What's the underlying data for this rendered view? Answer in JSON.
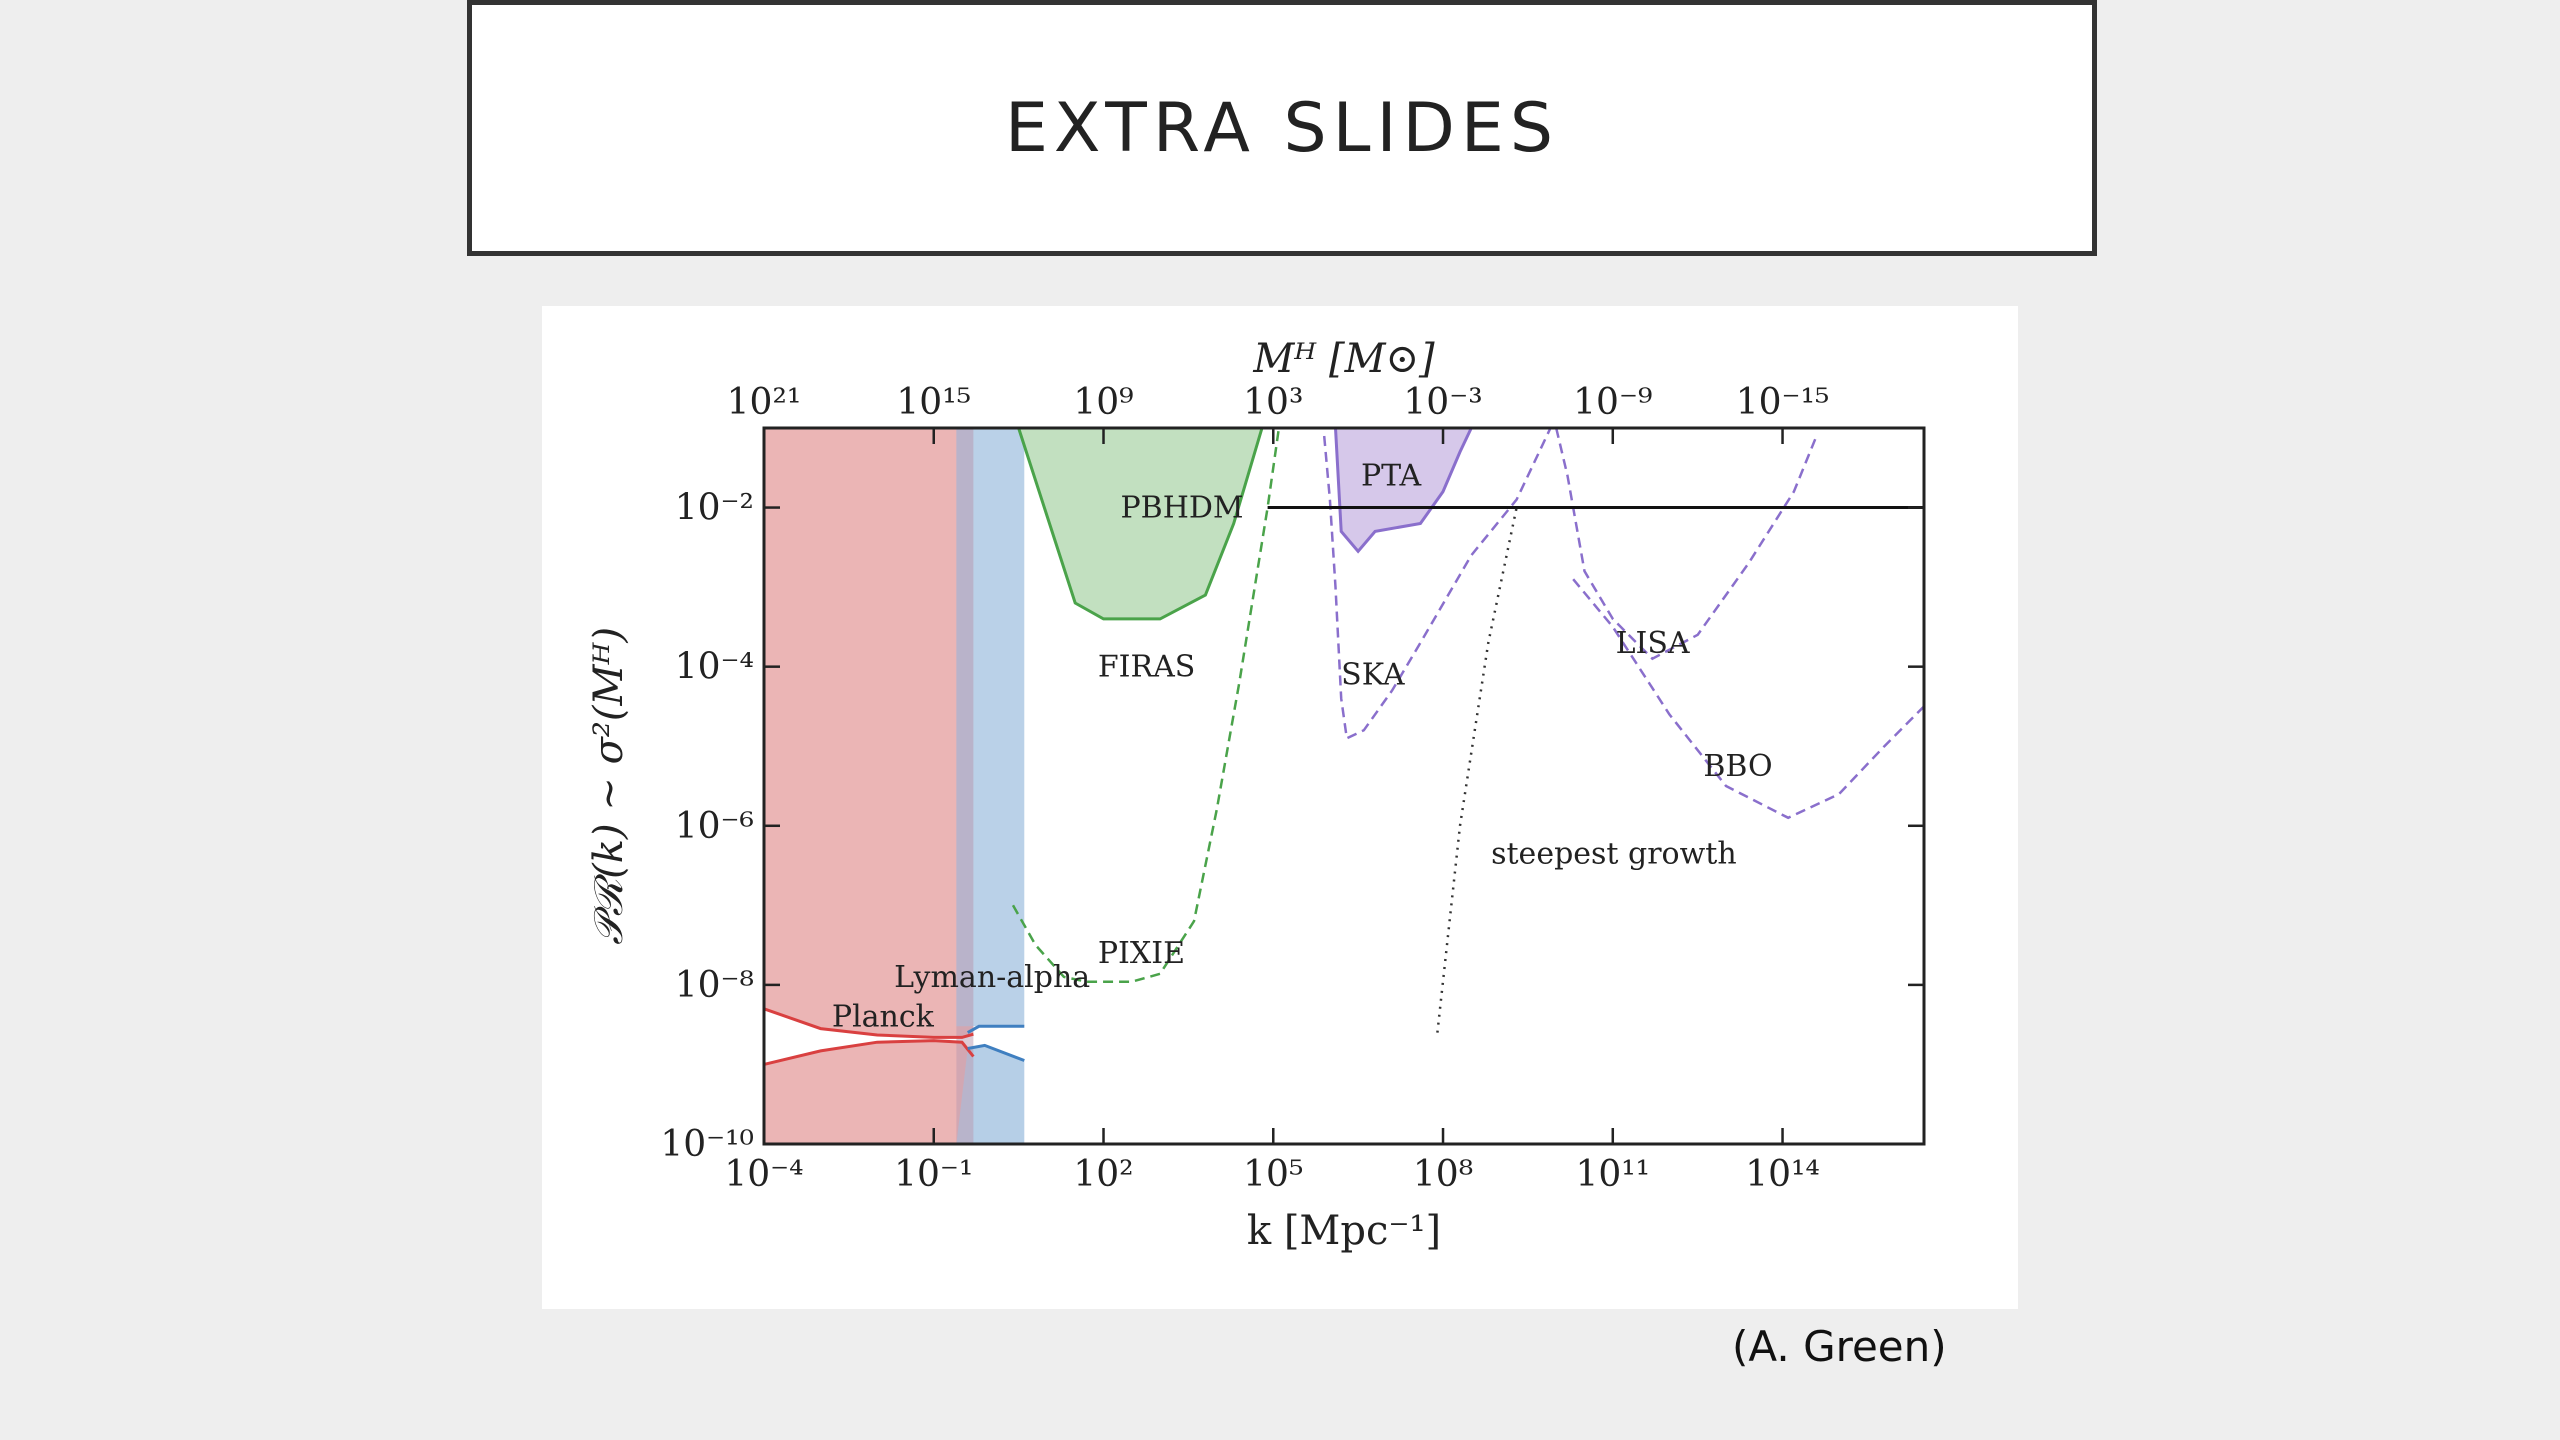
{
  "slide": {
    "title": "EXTRA SLIDES",
    "credit": "(A. Green)"
  },
  "chart_data": {
    "type": "area",
    "title": "",
    "xlabel": "k [Mpc⁻¹]",
    "ylabel": "𝒫ℛ(k) ~ σ²(Mᴴ)",
    "top_xlabel": "Mᴴ [M⊙]",
    "x_scale": "log10",
    "y_scale": "log10",
    "xlim_log10": [
      -4,
      16.5
    ],
    "ylim_log10": [
      -10,
      -1
    ],
    "x_ticks": [
      {
        "log10": -4,
        "label": "10⁻⁴"
      },
      {
        "log10": -1,
        "label": "10⁻¹"
      },
      {
        "log10": 2,
        "label": "10²"
      },
      {
        "log10": 5,
        "label": "10⁵"
      },
      {
        "log10": 8,
        "label": "10⁸"
      },
      {
        "log10": 11,
        "label": "10¹¹"
      },
      {
        "log10": 14,
        "label": "10¹⁴"
      }
    ],
    "y_ticks": [
      {
        "log10": -2,
        "label": "10⁻²"
      },
      {
        "log10": -4,
        "label": "10⁻⁴"
      },
      {
        "log10": -6,
        "label": "10⁻⁶"
      },
      {
        "log10": -8,
        "label": "10⁻⁸"
      },
      {
        "log10": -10,
        "label": "10⁻¹⁰"
      }
    ],
    "top_ticks": [
      {
        "k_log10": -4,
        "label": "10²¹"
      },
      {
        "k_log10": -1,
        "label": "10¹⁵"
      },
      {
        "k_log10": 2,
        "label": "10⁹"
      },
      {
        "k_log10": 5,
        "label": "10³"
      },
      {
        "k_log10": 8,
        "label": "10⁻³"
      },
      {
        "k_log10": 11,
        "label": "10⁻⁹"
      },
      {
        "k_log10": 14,
        "label": "10⁻¹⁵"
      }
    ],
    "colors": {
      "planck": "#d94040",
      "planck_fill": "#ebb5b5",
      "lyman": "#3f7fc0",
      "lyman_fill": "#b6cfe7",
      "firas": "#4aa34a",
      "firas_fill": "#c2e0c0",
      "pta": "#8a6fcc",
      "pta_fill": "#d6c8ea",
      "dashed_purple": "#8a6fcc",
      "pbhdm": "#111111",
      "steepest": "#333333"
    },
    "series": [
      {
        "name": "Planck",
        "kind": "excluded_region",
        "x_log10_range": [
          -4,
          -0.3
        ],
        "upper_curve": [
          [
            -4,
            -8.3
          ],
          [
            -3,
            -8.55
          ],
          [
            -2,
            -8.63
          ],
          [
            -1,
            -8.66
          ],
          [
            -0.5,
            -8.66
          ],
          [
            -0.3,
            -8.62
          ]
        ],
        "lower_curve": [
          [
            -4,
            -9.0
          ],
          [
            -3,
            -8.83
          ],
          [
            -2,
            -8.72
          ],
          [
            -1,
            -8.7
          ],
          [
            -0.5,
            -8.72
          ],
          [
            -0.3,
            -8.9
          ]
        ]
      },
      {
        "name": "Lyman-alpha",
        "kind": "excluded_region",
        "x_log10_range": [
          -0.6,
          0.6
        ],
        "upper_curve": [
          [
            -0.4,
            -8.6
          ],
          [
            -0.2,
            -8.52
          ],
          [
            0.6,
            -8.52
          ]
        ],
        "lower_curve": [
          [
            -0.4,
            -8.8
          ],
          [
            -0.1,
            -8.76
          ],
          [
            0.6,
            -8.95
          ]
        ]
      },
      {
        "name": "FIRAS",
        "kind": "excluded_region",
        "boundary": [
          [
            0.5,
            -1
          ],
          [
            1.0,
            -2.1
          ],
          [
            1.5,
            -3.2
          ],
          [
            2.0,
            -3.4
          ],
          [
            3.0,
            -3.4
          ],
          [
            3.8,
            -3.1
          ],
          [
            4.3,
            -2.2
          ],
          [
            4.8,
            -1
          ]
        ]
      },
      {
        "name": "PIXIE",
        "kind": "projected",
        "curve": [
          [
            0.4,
            -7.0
          ],
          [
            0.8,
            -7.5
          ],
          [
            1.3,
            -7.9
          ],
          [
            1.7,
            -7.96
          ],
          [
            2.5,
            -7.96
          ],
          [
            3.0,
            -7.86
          ],
          [
            3.6,
            -7.2
          ],
          [
            4.0,
            -5.8
          ],
          [
            4.4,
            -4.2
          ],
          [
            4.9,
            -2.0
          ],
          [
            5.1,
            -1.0
          ]
        ]
      },
      {
        "name": "PTA",
        "kind": "excluded_region",
        "boundary": [
          [
            6.1,
            -1
          ],
          [
            6.2,
            -2.3
          ],
          [
            6.5,
            -2.55
          ],
          [
            6.8,
            -2.3
          ],
          [
            7.6,
            -2.2
          ],
          [
            8.0,
            -1.8
          ],
          [
            8.3,
            -1.3
          ],
          [
            8.5,
            -1
          ]
        ]
      },
      {
        "name": "SKA",
        "kind": "projected",
        "curve": [
          [
            5.9,
            -1.1
          ],
          [
            6.0,
            -1.9
          ],
          [
            6.1,
            -3.0
          ],
          [
            6.2,
            -4.4
          ],
          [
            6.3,
            -4.9
          ],
          [
            6.6,
            -4.8
          ],
          [
            7.1,
            -4.3
          ],
          [
            7.6,
            -3.7
          ],
          [
            8.5,
            -2.6
          ],
          [
            9.3,
            -1.9
          ],
          [
            9.7,
            -1.3
          ],
          [
            9.9,
            -1.0
          ]
        ]
      },
      {
        "name": "LISA",
        "kind": "projected",
        "curve": [
          [
            10.0,
            -1.0
          ],
          [
            10.2,
            -1.6
          ],
          [
            10.5,
            -2.8
          ],
          [
            11.0,
            -3.4
          ],
          [
            11.7,
            -3.9
          ],
          [
            12.5,
            -3.6
          ],
          [
            13.4,
            -2.7
          ],
          [
            14.2,
            -1.8
          ],
          [
            14.6,
            -1.1
          ]
        ]
      },
      {
        "name": "BBO",
        "kind": "projected",
        "curve": [
          [
            10.3,
            -2.9
          ],
          [
            11.0,
            -3.5
          ],
          [
            12.0,
            -4.6
          ],
          [
            13.0,
            -5.5
          ],
          [
            14.1,
            -5.9
          ],
          [
            15.0,
            -5.6
          ],
          [
            15.8,
            -5.0
          ],
          [
            16.5,
            -4.5
          ]
        ]
      },
      {
        "name": "PBHDM",
        "kind": "line",
        "y_log10": -2,
        "x_log10_range": [
          4.9,
          16.5
        ]
      },
      {
        "name": "steepest growth",
        "kind": "line",
        "curve": [
          [
            7.9,
            -8.6
          ],
          [
            8.3,
            -6.0
          ],
          [
            8.8,
            -3.7
          ],
          [
            9.3,
            -2.0
          ]
        ]
      }
    ],
    "annotations": [
      {
        "text": "PBHDM",
        "x_log10": 2.3,
        "y_log10": -2
      },
      {
        "text": "PTA",
        "x_log10": 6.55,
        "y_log10": -1.6
      },
      {
        "text": "FIRAS",
        "x_log10": 1.9,
        "y_log10": -4
      },
      {
        "text": "SKA",
        "x_log10": 6.2,
        "y_log10": -4.1
      },
      {
        "text": "LISA",
        "x_log10": 11.05,
        "y_log10": -3.7
      },
      {
        "text": "BBO",
        "x_log10": 12.6,
        "y_log10": -5.25
      },
      {
        "text": "steepest growth",
        "x_log10": 8.85,
        "y_log10": -6.35
      },
      {
        "text": "PIXIE",
        "x_log10": 1.9,
        "y_log10": -7.6
      },
      {
        "text": "Lyman-alpha",
        "x_log10": -1.7,
        "y_log10": -7.9
      },
      {
        "text": "Planck",
        "x_log10": -2.8,
        "y_log10": -8.4
      }
    ],
    "grid": false
  }
}
